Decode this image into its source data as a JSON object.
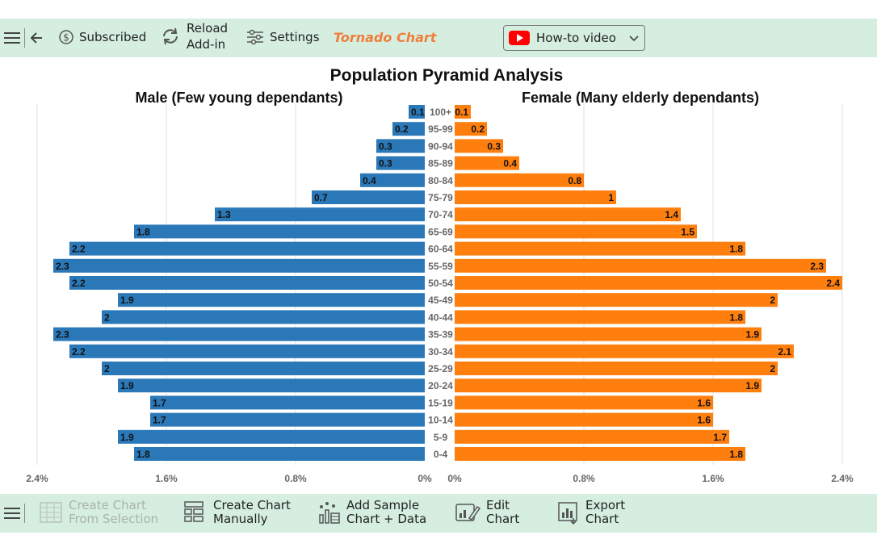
{
  "toolbar_top": {
    "subscribed_label": "Subscribed",
    "reload_line1": "Reload",
    "reload_line2": "Add-in",
    "settings_label": "Settings",
    "app_title": "Tornado Chart",
    "howto_label": "How-to video"
  },
  "toolbar_bottom": {
    "create_from_sel_line1": "Create Chart",
    "create_from_sel_line2": "From Selection",
    "create_manual_line1": "Create Chart",
    "create_manual_line2": "Manually",
    "add_sample_line1": "Add Sample",
    "add_sample_line2": "Chart + Data",
    "edit_line1": "Edit",
    "edit_line2": "Chart",
    "export_line1": "Export",
    "export_line2": "Chart"
  },
  "colors": {
    "male": "#2b78b8",
    "female": "#ff7f0e",
    "toolbar_bg": "#d5eee0"
  },
  "chart_data": {
    "type": "bar",
    "title": "Population Pyramid Analysis",
    "left_subtitle": "Male (Few young dependants)",
    "right_subtitle": "Female (Many elderly dependants)",
    "categories": [
      "100+",
      "95-99",
      "90-94",
      "85-89",
      "80-84",
      "75-79",
      "70-74",
      "65-69",
      "60-64",
      "55-59",
      "50-54",
      "45-49",
      "40-44",
      "35-39",
      "30-34",
      "25-29",
      "20-24",
      "15-19",
      "10-14",
      "5-9",
      "0-4"
    ],
    "series": [
      {
        "name": "Male",
        "values": [
          0.1,
          0.2,
          0.3,
          0.3,
          0.4,
          0.7,
          1.3,
          1.8,
          2.2,
          2.3,
          2.2,
          1.9,
          2,
          2.3,
          2.2,
          2,
          1.9,
          1.7,
          1.7,
          1.9,
          1.8
        ]
      },
      {
        "name": "Female",
        "values": [
          0.1,
          0.2,
          0.3,
          0.4,
          0.8,
          1,
          1.4,
          1.5,
          1.8,
          2.3,
          2.4,
          2,
          1.8,
          1.9,
          2.1,
          2,
          1.9,
          1.6,
          1.6,
          1.7,
          1.8
        ]
      }
    ],
    "xlim": [
      0,
      2.4
    ],
    "left_ticks": [
      "2.4%",
      "1.6%",
      "0.8%",
      "0%"
    ],
    "right_ticks": [
      "0%",
      "0.8%",
      "1.6%",
      "2.4%"
    ],
    "grid": true
  }
}
